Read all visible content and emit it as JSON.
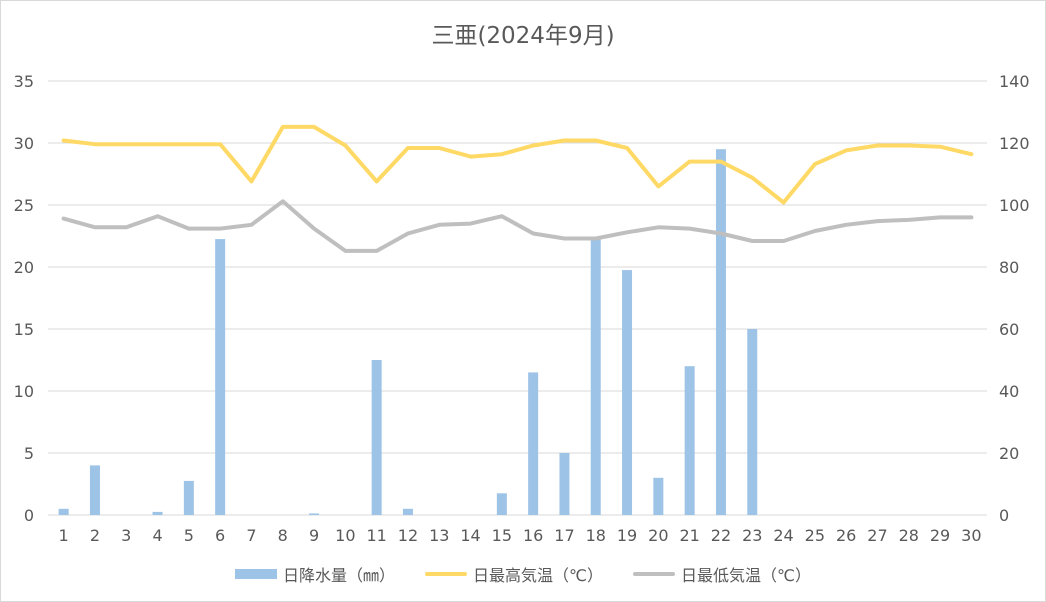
{
  "chart_data": {
    "type": "bar",
    "title": "三亜(2024年9月)",
    "categories": [
      "1",
      "2",
      "3",
      "4",
      "5",
      "6",
      "7",
      "8",
      "9",
      "10",
      "11",
      "12",
      "13",
      "14",
      "15",
      "16",
      "17",
      "18",
      "19",
      "20",
      "21",
      "22",
      "23",
      "24",
      "25",
      "26",
      "27",
      "28",
      "29",
      "30"
    ],
    "y_left": {
      "ylim": [
        0,
        35
      ],
      "ticks": [
        "0",
        "5",
        "10",
        "15",
        "20",
        "25",
        "30",
        "35"
      ]
    },
    "y_right": {
      "ylim": [
        0,
        140
      ],
      "ticks": [
        "0",
        "20",
        "40",
        "60",
        "80",
        "100",
        "120",
        "140"
      ]
    },
    "grid": true,
    "legend_position": "bottom",
    "series": [
      {
        "name": "日降水量（㎜）",
        "type": "bar",
        "axis": "right",
        "color": "#9dc3e6",
        "values": [
          2,
          16,
          0,
          1,
          11,
          89,
          0,
          0,
          0.5,
          0,
          50,
          2,
          0,
          0,
          7,
          46,
          20,
          89,
          79,
          12,
          48,
          118,
          60,
          0,
          0,
          0,
          0,
          0,
          0,
          0
        ]
      },
      {
        "name": "日最高気温（℃）",
        "type": "line",
        "axis": "left",
        "color": "#ffd966",
        "values": [
          30.2,
          29.9,
          29.9,
          29.9,
          29.9,
          29.9,
          26.9,
          31.3,
          31.3,
          29.8,
          26.9,
          29.6,
          29.6,
          28.9,
          29.1,
          29.8,
          30.2,
          30.2,
          29.6,
          26.5,
          28.5,
          28.5,
          27.2,
          25.2,
          28.3,
          29.4,
          29.8,
          29.8,
          29.7,
          29.1
        ]
      },
      {
        "name": "日最低気温（℃）",
        "type": "line",
        "axis": "left",
        "color": "#bfbfbf",
        "values": [
          23.9,
          23.2,
          23.2,
          24.1,
          23.1,
          23.1,
          23.4,
          25.3,
          23.1,
          21.3,
          21.3,
          22.7,
          23.4,
          23.5,
          24.1,
          22.7,
          22.3,
          22.3,
          22.8,
          23.2,
          23.1,
          22.7,
          22.1,
          22.1,
          22.9,
          23.4,
          23.7,
          23.8,
          24,
          24
        ]
      }
    ]
  }
}
